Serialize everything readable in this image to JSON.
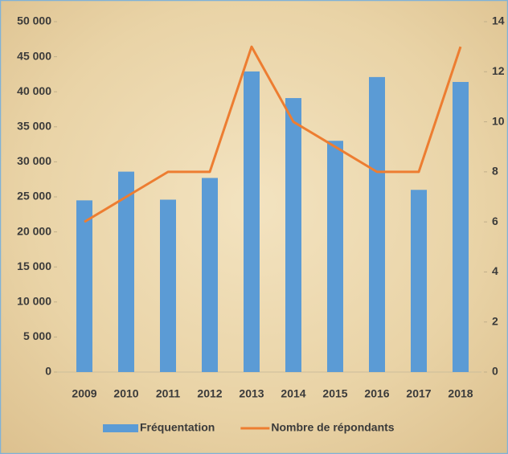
{
  "chart_data": {
    "type": "bar_line",
    "categories": [
      "2009",
      "2010",
      "2011",
      "2012",
      "2013",
      "2014",
      "2015",
      "2016",
      "2017",
      "2018"
    ],
    "series": [
      {
        "name": "Fréquentation",
        "type": "bar",
        "color": "#5b9bd5",
        "values": [
          24500,
          28600,
          24600,
          27700,
          42900,
          39100,
          33000,
          42100,
          26000,
          41400
        ]
      },
      {
        "name": "Nombre de répondants",
        "type": "line",
        "axis": "y2",
        "color": "#ed7d31",
        "values": [
          6,
          7,
          8,
          8,
          13,
          10,
          9,
          8,
          8,
          13
        ]
      }
    ],
    "ylim": [
      0,
      50000
    ],
    "yticks": [
      0,
      {
        "value": 5000,
        "label": "5 000"
      },
      {
        "value": 10000,
        "label": "10 000"
      },
      {
        "value": 15000,
        "label": "15 000"
      },
      {
        "value": 20000,
        "label": "20 000"
      },
      {
        "value": 25000,
        "label": "25 000"
      },
      {
        "value": 30000,
        "label": "30 000"
      },
      {
        "value": 35000,
        "label": "35 000"
      },
      {
        "value": 40000,
        "label": "40 000"
      },
      {
        "value": 45000,
        "label": "45 000"
      },
      {
        "value": 50000,
        "label": "50 000"
      }
    ],
    "y2lim": [
      0,
      14
    ],
    "y2ticks": [
      0,
      2,
      4,
      6,
      8,
      10,
      12,
      14
    ],
    "legend": "bottom"
  }
}
